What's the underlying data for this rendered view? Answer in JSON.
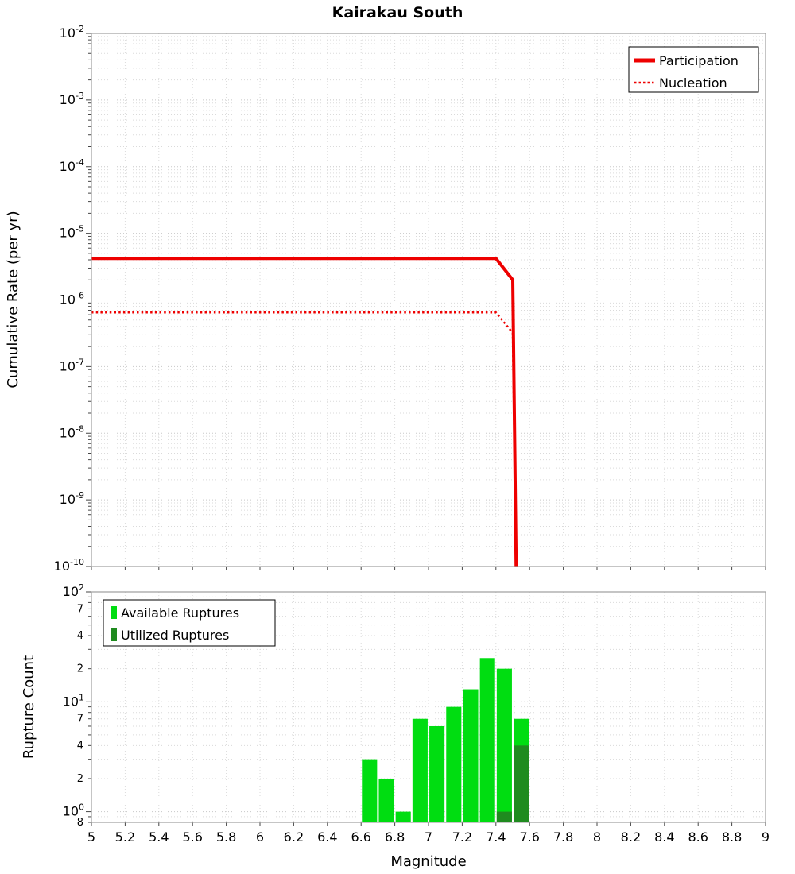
{
  "chart_data": [
    {
      "type": "line",
      "title": "Kairakau South",
      "xlabel": "",
      "ylabel": "Cumulative Rate (per yr)",
      "xlim": [
        5,
        9
      ],
      "x_ticks": [
        5,
        5.2,
        5.4,
        5.6,
        5.8,
        6,
        6.2,
        6.4,
        6.6,
        6.8,
        7,
        7.2,
        7.4,
        7.6,
        7.8,
        8,
        8.2,
        8.4,
        8.6,
        8.8,
        9
      ],
      "x_tick_labels_visible": false,
      "yscale": "log",
      "ylim": [
        1e-10,
        0.01
      ],
      "y_ticks": [
        {
          "value": 0.01,
          "exp": -2
        },
        {
          "value": 0.001,
          "exp": -3
        },
        {
          "value": 0.0001,
          "exp": -4
        },
        {
          "value": 1e-05,
          "exp": -5
        },
        {
          "value": 1e-06,
          "exp": -6
        },
        {
          "value": 1e-07,
          "exp": -7
        },
        {
          "value": 1e-08,
          "exp": -8
        },
        {
          "value": 1e-09,
          "exp": -9
        },
        {
          "value": 1e-10,
          "exp": -10
        }
      ],
      "grid": true,
      "legend_position": "top-right",
      "series": [
        {
          "name": "Participation",
          "color": "#ee0000",
          "line": "solid",
          "width": 4,
          "points": [
            [
              5.0,
              4.2e-06
            ],
            [
              7.4,
              4.2e-06
            ],
            [
              7.5,
              2e-06
            ],
            [
              7.52,
              1e-10
            ]
          ]
        },
        {
          "name": "Nucleation",
          "color": "#ee0000",
          "line": "dotted",
          "width": 2.5,
          "points": [
            [
              5.0,
              6.5e-07
            ],
            [
              7.4,
              6.5e-07
            ],
            [
              7.5,
              3.2e-07
            ],
            [
              7.52,
              1e-10
            ]
          ]
        }
      ]
    },
    {
      "type": "bar",
      "title": "",
      "xlabel": "Magnitude",
      "ylabel": "Rupture Count",
      "xlim": [
        5,
        9
      ],
      "x_ticks": [
        5,
        5.2,
        5.4,
        5.6,
        5.8,
        6,
        6.2,
        6.4,
        6.6,
        6.8,
        7,
        7.2,
        7.4,
        7.6,
        7.8,
        8,
        8.2,
        8.4,
        8.6,
        8.8,
        9
      ],
      "x_tick_labels_visible": true,
      "yscale": "log",
      "ylim": [
        0.8,
        100
      ],
      "y_ticks": [
        {
          "value": 100,
          "exp": 2
        },
        {
          "value": 70,
          "text": "7"
        },
        {
          "value": 40,
          "text": "4"
        },
        {
          "value": 20,
          "text": "2"
        },
        {
          "value": 10,
          "exp": 1
        },
        {
          "value": 7,
          "text": "7"
        },
        {
          "value": 4,
          "text": "4"
        },
        {
          "value": 2,
          "text": "2"
        },
        {
          "value": 1,
          "exp": 0
        },
        {
          "value": 0.8,
          "text": "8"
        }
      ],
      "grid": true,
      "bar_width": 0.1,
      "legend_position": "top-left",
      "series": [
        {
          "name": "Available Ruptures",
          "color": "#00dd11",
          "x": [
            6.65,
            6.75,
            6.85,
            6.95,
            7.05,
            7.15,
            7.25,
            7.35,
            7.45,
            7.55
          ],
          "values": [
            3,
            2,
            1,
            7,
            6,
            9,
            13,
            25,
            20,
            7
          ]
        },
        {
          "name": "Utilized Ruptures",
          "color": "#1f8b1f",
          "x": [
            7.45,
            7.55
          ],
          "values": [
            1,
            4
          ]
        }
      ]
    }
  ]
}
